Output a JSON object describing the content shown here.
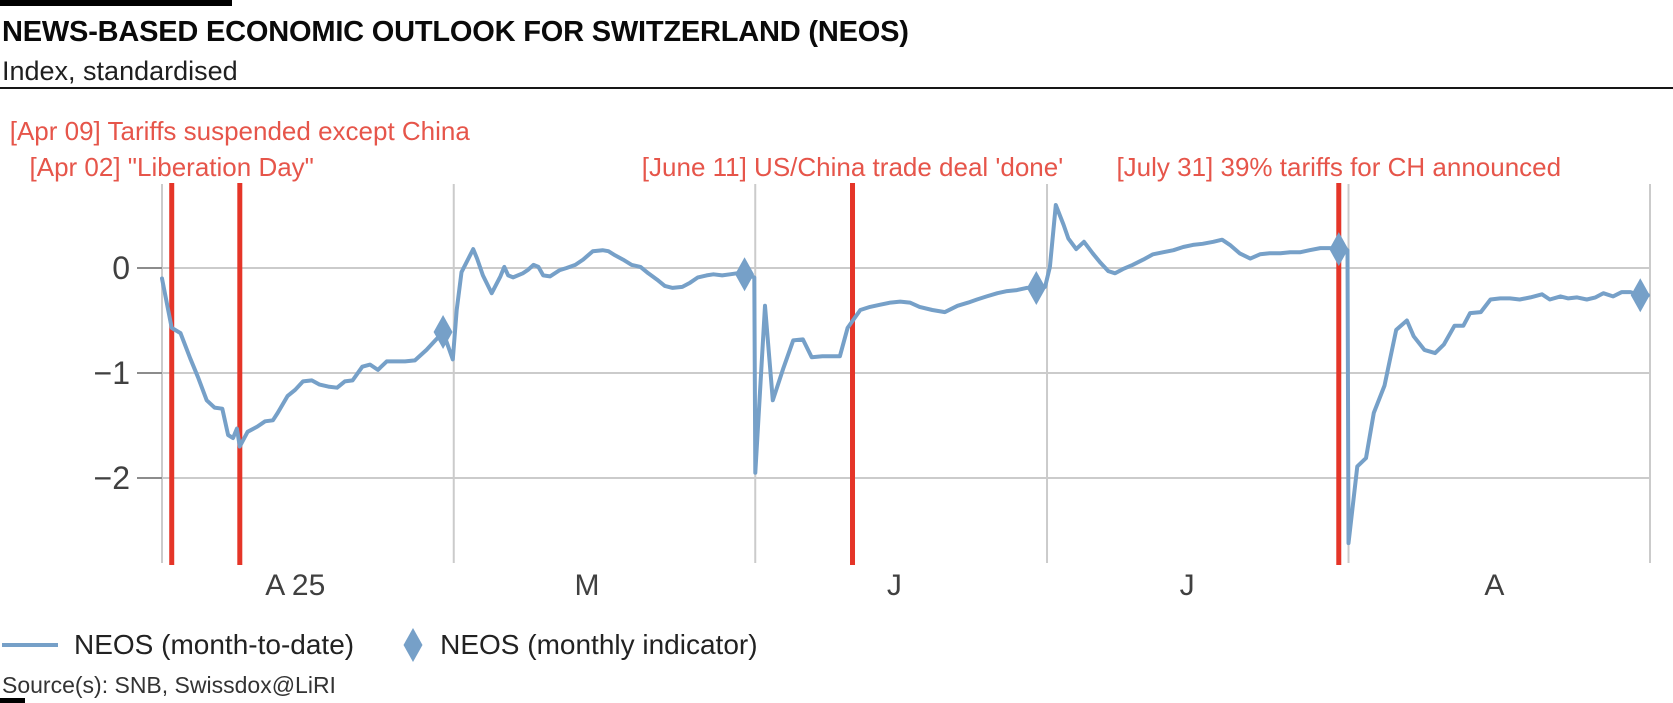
{
  "header": {
    "title": "NEWS-BASED ECONOMIC OUTLOOK FOR SWITZERLAND (NEOS)",
    "subtitle": "Index, standardised"
  },
  "legend": {
    "items": [
      {
        "label": "NEOS (month-to-date)",
        "swatch": "line"
      },
      {
        "label": "NEOS (monthly indicator)",
        "swatch": "diamond"
      }
    ]
  },
  "source": "Source(s): SNB, Swissdox@LiRI",
  "chart_data": {
    "type": "line",
    "title": "NEWS-BASED ECONOMIC OUTLOOK FOR SWITZERLAND (NEOS)",
    "subtitle": "Index, standardised",
    "xlabel": "",
    "ylabel": "Index, standardised",
    "x_axis": {
      "unit": "days since 1 Apr 2025",
      "range": [
        0,
        153
      ],
      "grid": true,
      "month_ticks": [
        {
          "label": "A 25",
          "day": 13.7
        },
        {
          "label": "M",
          "day": 43.7
        },
        {
          "label": "J",
          "day": 75.3
        },
        {
          "label": "J",
          "day": 105.4
        },
        {
          "label": "A",
          "day": 137.0
        }
      ],
      "month_boundaries": [
        0,
        30,
        61,
        91,
        122,
        153
      ]
    },
    "y_axis": {
      "range": [
        0.8,
        -2.8
      ],
      "grid": true,
      "ticks": [
        {
          "label": "0",
          "value": 0
        },
        {
          "label": "−1",
          "value": -1
        },
        {
          "label": "−2",
          "value": -2
        }
      ]
    },
    "events": [
      {
        "label": "[Apr 09] Tariffs suspended except China",
        "day": 8,
        "text_row": 1
      },
      {
        "label": "[Apr 02] \"Liberation Day\"",
        "day": 1,
        "text_row": 2
      },
      {
        "label": "[June 11] US/China trade deal 'done'",
        "day": 71,
        "text_row": 2
      },
      {
        "label": "[July 31] 39% tariffs for CH announced",
        "day": 121,
        "text_row": 2
      }
    ],
    "series": [
      {
        "name": "NEOS (month-to-date)",
        "points": [
          [
            0,
            -0.1
          ],
          [
            1,
            -0.57
          ],
          [
            1.9,
            -0.62
          ],
          [
            2.9,
            -0.86
          ],
          [
            3.7,
            -1.04
          ],
          [
            4.6,
            -1.26
          ],
          [
            5.4,
            -1.33
          ],
          [
            6.2,
            -1.34
          ],
          [
            6.8,
            -1.59
          ],
          [
            7.3,
            -1.62
          ],
          [
            7.7,
            -1.53
          ],
          [
            8,
            -1.7
          ],
          [
            8.8,
            -1.56
          ],
          [
            9.8,
            -1.51
          ],
          [
            10.6,
            -1.46
          ],
          [
            11.4,
            -1.45
          ],
          [
            11.9,
            -1.38
          ],
          [
            12.9,
            -1.22
          ],
          [
            13.7,
            -1.16
          ],
          [
            14.5,
            -1.08
          ],
          [
            15.4,
            -1.07
          ],
          [
            16.2,
            -1.11
          ],
          [
            17.1,
            -1.13
          ],
          [
            18,
            -1.14
          ],
          [
            18.8,
            -1.08
          ],
          [
            19.6,
            -1.07
          ],
          [
            20.6,
            -0.94
          ],
          [
            21.4,
            -0.92
          ],
          [
            22.2,
            -0.97
          ],
          [
            23.1,
            -0.89
          ],
          [
            24,
            -0.89
          ],
          [
            25,
            -0.89
          ],
          [
            26,
            -0.88
          ],
          [
            27.2,
            -0.78
          ],
          [
            28.1,
            -0.69
          ],
          [
            28.9,
            -0.61
          ],
          [
            29.9,
            -0.87
          ],
          [
            30.3,
            -0.4
          ],
          [
            30.8,
            -0.04
          ],
          [
            32,
            0.18
          ],
          [
            32.4,
            0.09
          ],
          [
            33,
            -0.07
          ],
          [
            33.9,
            -0.24
          ],
          [
            34.8,
            -0.08
          ],
          [
            35.2,
            0.01
          ],
          [
            35.6,
            -0.07
          ],
          [
            36.1,
            -0.09
          ],
          [
            37.1,
            -0.05
          ],
          [
            37.6,
            -0.02
          ],
          [
            38.2,
            0.03
          ],
          [
            38.7,
            0.01
          ],
          [
            39.2,
            -0.07
          ],
          [
            39.9,
            -0.08
          ],
          [
            40.9,
            -0.02
          ],
          [
            41.6,
            0.0
          ],
          [
            42.5,
            0.03
          ],
          [
            43.3,
            0.08
          ],
          [
            44.3,
            0.16
          ],
          [
            45.3,
            0.17
          ],
          [
            45.9,
            0.16
          ],
          [
            46.6,
            0.12
          ],
          [
            47.4,
            0.08
          ],
          [
            48.3,
            0.03
          ],
          [
            49.2,
            0.01
          ],
          [
            50,
            -0.05
          ],
          [
            50.9,
            -0.11
          ],
          [
            51.7,
            -0.17
          ],
          [
            52.5,
            -0.19
          ],
          [
            53.5,
            -0.18
          ],
          [
            54.3,
            -0.14
          ],
          [
            55.1,
            -0.09
          ],
          [
            56,
            -0.07
          ],
          [
            56.7,
            -0.06
          ],
          [
            57.6,
            -0.07
          ],
          [
            58.4,
            -0.06
          ],
          [
            59.1,
            -0.05
          ],
          [
            59.9,
            -0.06
          ],
          [
            60.9,
            -0.09
          ],
          [
            61,
            -1.95
          ],
          [
            62,
            -0.36
          ],
          [
            62.8,
            -1.26
          ],
          [
            63.9,
            -0.95
          ],
          [
            64.9,
            -0.69
          ],
          [
            65.9,
            -0.68
          ],
          [
            66.8,
            -0.85
          ],
          [
            67.9,
            -0.84
          ],
          [
            69.7,
            -0.84
          ],
          [
            70.5,
            -0.57
          ],
          [
            71.8,
            -0.4
          ],
          [
            72.8,
            -0.37
          ],
          [
            73.8,
            -0.35
          ],
          [
            74.9,
            -0.33
          ],
          [
            75.9,
            -0.32
          ],
          [
            76.9,
            -0.33
          ],
          [
            77.9,
            -0.37
          ],
          [
            79.2,
            -0.4
          ],
          [
            80.5,
            -0.42
          ],
          [
            81.8,
            -0.36
          ],
          [
            82.9,
            -0.33
          ],
          [
            83.8,
            -0.3
          ],
          [
            84.8,
            -0.27
          ],
          [
            85.9,
            -0.24
          ],
          [
            86.9,
            -0.22
          ],
          [
            87.9,
            -0.21
          ],
          [
            88.9,
            -0.19
          ],
          [
            89.9,
            -0.19
          ],
          [
            90.8,
            -0.18
          ],
          [
            91.3,
            0.01
          ],
          [
            91.9,
            0.6
          ],
          [
            92.7,
            0.41
          ],
          [
            93.2,
            0.28
          ],
          [
            94,
            0.18
          ],
          [
            94.8,
            0.25
          ],
          [
            95.7,
            0.14
          ],
          [
            96.5,
            0.05
          ],
          [
            97.3,
            -0.03
          ],
          [
            98,
            -0.05
          ],
          [
            98.8,
            -0.01
          ],
          [
            99.8,
            0.03
          ],
          [
            100.9,
            0.08
          ],
          [
            101.9,
            0.13
          ],
          [
            102.9,
            0.15
          ],
          [
            104,
            0.17
          ],
          [
            105,
            0.2
          ],
          [
            106,
            0.22
          ],
          [
            107,
            0.23
          ],
          [
            108.1,
            0.25
          ],
          [
            109,
            0.27
          ],
          [
            109.8,
            0.22
          ],
          [
            110.8,
            0.14
          ],
          [
            111.9,
            0.09
          ],
          [
            112.9,
            0.13
          ],
          [
            113.9,
            0.14
          ],
          [
            115,
            0.14
          ],
          [
            116,
            0.15
          ],
          [
            117,
            0.15
          ],
          [
            118,
            0.17
          ],
          [
            119.1,
            0.19
          ],
          [
            120.1,
            0.19
          ],
          [
            121,
            0.18
          ],
          [
            121.9,
            0.17
          ],
          [
            122,
            -2.62
          ],
          [
            122.9,
            -1.89
          ],
          [
            123.8,
            -1.81
          ],
          [
            124.6,
            -1.38
          ],
          [
            125.7,
            -1.12
          ],
          [
            126.9,
            -0.59
          ],
          [
            128,
            -0.5
          ],
          [
            128.7,
            -0.65
          ],
          [
            129.8,
            -0.78
          ],
          [
            130.9,
            -0.81
          ],
          [
            131.8,
            -0.73
          ],
          [
            132.9,
            -0.55
          ],
          [
            133.8,
            -0.55
          ],
          [
            134.5,
            -0.43
          ],
          [
            135.6,
            -0.42
          ],
          [
            136.6,
            -0.3
          ],
          [
            137.6,
            -0.29
          ],
          [
            138.6,
            -0.29
          ],
          [
            139.6,
            -0.3
          ],
          [
            140.7,
            -0.28
          ],
          [
            141.9,
            -0.25
          ],
          [
            142.7,
            -0.3
          ],
          [
            143.8,
            -0.27
          ],
          [
            144.6,
            -0.29
          ],
          [
            145.5,
            -0.28
          ],
          [
            146.5,
            -0.3
          ],
          [
            147.4,
            -0.28
          ],
          [
            148.2,
            -0.24
          ],
          [
            149.2,
            -0.27
          ],
          [
            150.1,
            -0.23
          ],
          [
            151,
            -0.23
          ],
          [
            152,
            -0.26
          ],
          [
            152.8,
            -0.26
          ]
        ]
      }
    ],
    "monthly_indicator": {
      "name": "NEOS (monthly indicator)",
      "points": [
        [
          28.9,
          -0.61
        ],
        [
          59.9,
          -0.06
        ],
        [
          89.9,
          -0.19
        ],
        [
          121.0,
          0.18
        ],
        [
          152.0,
          -0.26
        ]
      ]
    },
    "colors": {
      "line": "#76a0c8",
      "marker": "#76a0c8",
      "event_line": "#e53528",
      "event_text": "#e6554a",
      "grid": "#cbcbcb",
      "axis_tick": "#8c8c8c",
      "axis_text": "#404040"
    }
  }
}
